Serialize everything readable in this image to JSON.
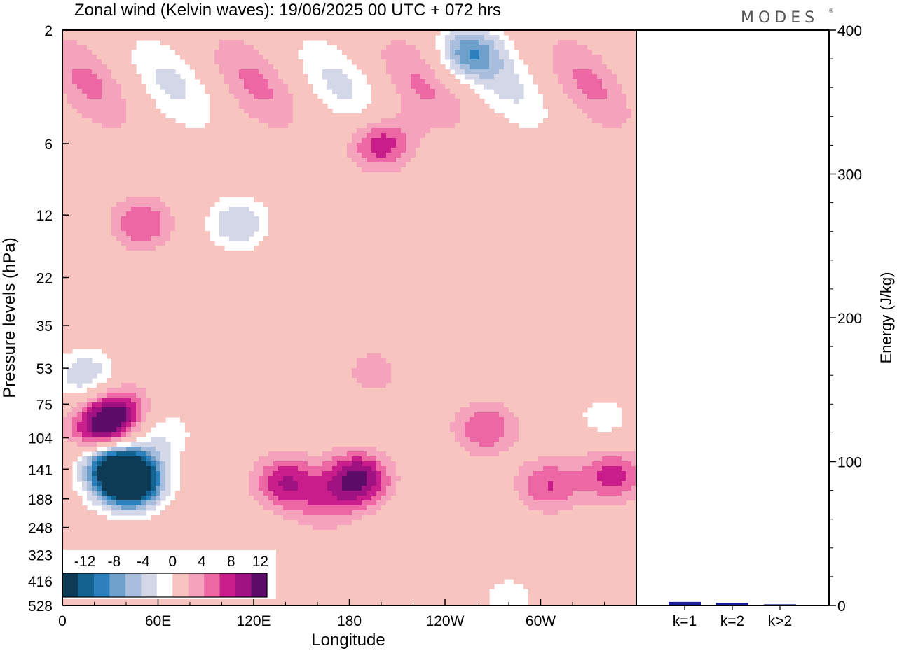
{
  "header": {
    "title": "Zonal wind (Kelvin waves):  19/06/2025  00 UTC  + 072 hrs",
    "brand": "MODES",
    "brand_mark": "®"
  },
  "chart_data": [
    {
      "type": "heatmap",
      "title": "Zonal wind (Kelvin waves):  19/06/2025  00 UTC  + 072 hrs",
      "xlabel": "Longitude",
      "ylabel": "Pressure levels (hPa)",
      "x_ticks": [
        "0",
        "60E",
        "120E",
        "180",
        "120W",
        "60W"
      ],
      "x_tick_values": [
        0,
        60,
        120,
        180,
        240,
        300
      ],
      "xlim": [
        0,
        360
      ],
      "y_ticks": [
        "2",
        "6",
        "12",
        "22",
        "35",
        "53",
        "75",
        "104",
        "141",
        "188",
        "248",
        "323",
        "416",
        "528"
      ],
      "y_scale": "log",
      "ylim": [
        2,
        528
      ],
      "y_inverted": true,
      "grid": false,
      "colorbar": {
        "labels": [
          "-12",
          "-8",
          "-4",
          "0",
          "4",
          "8",
          "12"
        ],
        "label_values": [
          -12,
          -8,
          -4,
          0,
          4,
          8,
          12
        ],
        "levels": [
          -14,
          -12,
          -10,
          -8,
          -6,
          -4,
          -2,
          2,
          4,
          6,
          8,
          10,
          12,
          14
        ],
        "colors": [
          "#0d3a55",
          "#14628f",
          "#2c80bb",
          "#6fa0cb",
          "#a8bedc",
          "#d4d7e8",
          "#ffffff",
          "#f8c4c0",
          "#f5a2bd",
          "#ec67a4",
          "#c91d8c",
          "#a01282",
          "#5c0c68"
        ],
        "placement": "bottom-left"
      },
      "features": [
        {
          "lon": 43,
          "p": 160,
          "value": -14
        },
        {
          "lon": 38,
          "p": 150,
          "value": -12
        },
        {
          "lon": 28,
          "p": 125,
          "value": -8
        },
        {
          "lon": 62,
          "p": 100,
          "value": -4
        },
        {
          "lon": 25,
          "p": 98,
          "value": 11
        },
        {
          "lon": 35,
          "p": 80,
          "value": 8
        },
        {
          "lon": 15,
          "p": 57,
          "value": -6
        },
        {
          "lon": 110,
          "p": 13,
          "value": -6
        },
        {
          "lon": 50,
          "p": 13,
          "value": 6
        },
        {
          "lon": 255,
          "p": 2.5,
          "value": -8
        },
        {
          "lon": 200,
          "p": 6,
          "value": 8
        },
        {
          "lon": 185,
          "p": 155,
          "value": 11
        },
        {
          "lon": 140,
          "p": 160,
          "value": 8
        },
        {
          "lon": 165,
          "p": 200,
          "value": 4
        },
        {
          "lon": 265,
          "p": 95,
          "value": 6
        },
        {
          "lon": 305,
          "p": 165,
          "value": 6
        },
        {
          "lon": 345,
          "p": 150,
          "value": 7
        },
        {
          "lon": 195,
          "p": 55,
          "value": 3
        },
        {
          "lon": 280,
          "p": 490,
          "value": -3
        },
        {
          "lon": 340,
          "p": 85,
          "value": -3
        }
      ]
    },
    {
      "type": "bar",
      "categories": [
        "k=1",
        "k=2",
        "k>2"
      ],
      "values": [
        2.5,
        1.8,
        0.8
      ],
      "ylabel": "Energy (J/kg)",
      "ylim": [
        0,
        400
      ],
      "y_ticks": [
        "0",
        "100",
        "200",
        "300",
        "400"
      ],
      "y_tick_values": [
        0,
        100,
        200,
        300,
        400
      ],
      "y_axis_side": "right",
      "bar_color": "#1a1a9c"
    }
  ]
}
